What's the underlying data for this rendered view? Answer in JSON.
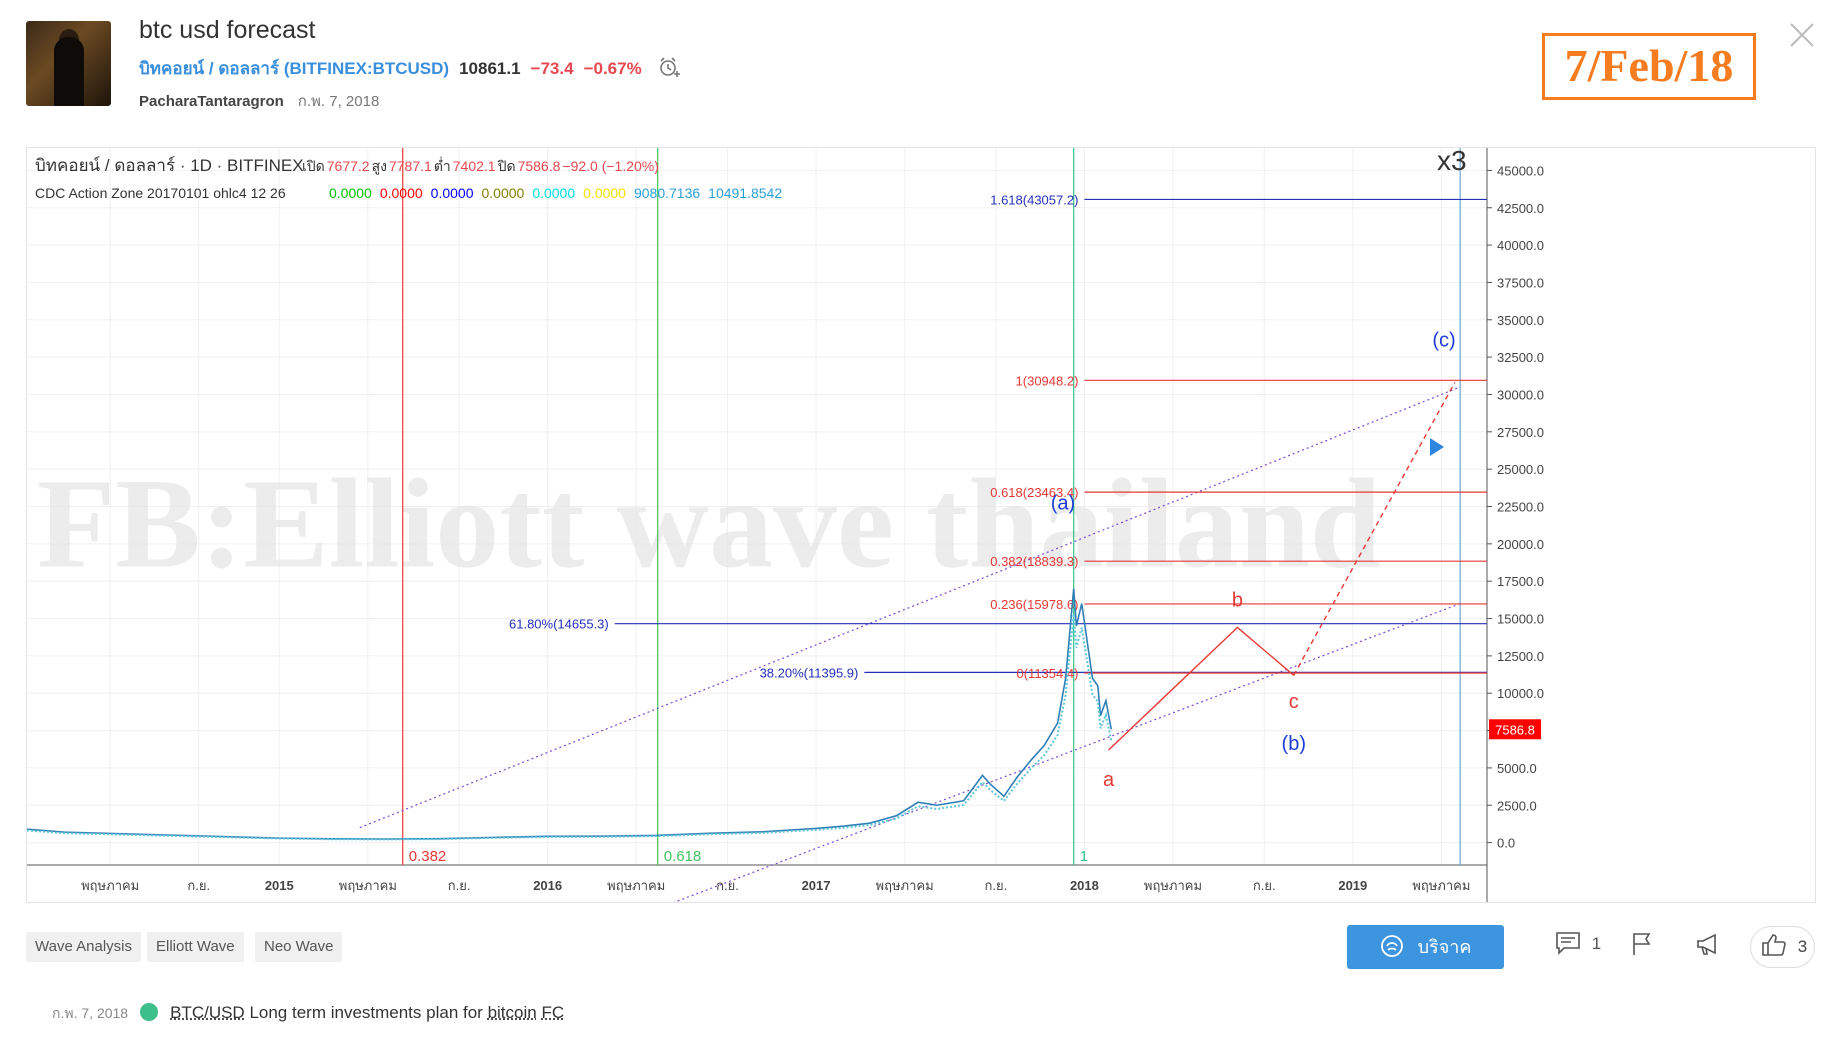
{
  "header": {
    "title": "btc usd forecast",
    "symbol_name": "บิทคอยน์ / ดอลลาร์",
    "symbol_code": "(BITFINEX:BTCUSD)",
    "price": "10861.1",
    "change": "−73.4",
    "change_pct": "−0.67%",
    "author": "PacharaTantaragron",
    "date": "ก.พ. 7, 2018",
    "stamp": "7/Feb/18"
  },
  "chart_data": {
    "type": "line",
    "title": "บิทคอยน์ / ดอลลาร์ · 1D · BITFINEX",
    "ohlc": {
      "open_label": "เปิด",
      "open": "7677.2",
      "high_label": "สูง",
      "high": "7787.1",
      "low_label": "ต่ำ",
      "low": "7402.1",
      "close_label": "ปิด",
      "close": "7586.8",
      "change": "−92.0 (−1.20%)"
    },
    "indicator": {
      "name": "CDC Action Zone 20170101 ohlc4 12 26",
      "values": [
        {
          "text": "0.0000",
          "color": "#00c000"
        },
        {
          "text": "0.0000",
          "color": "#ff0000"
        },
        {
          "text": "0.0000",
          "color": "#0000ff"
        },
        {
          "text": "0.0000",
          "color": "#808000"
        },
        {
          "text": "0.0000",
          "color": "#00e0e0"
        },
        {
          "text": "0.0000",
          "color": "#f0e000"
        },
        {
          "text": "9080.7136",
          "color": "#2a9fd6"
        },
        {
          "text": "10491.8542",
          "color": "#2a9fd6"
        }
      ]
    },
    "multiplier": "x3",
    "watermark": "FB:Elliott wave thailand",
    "ylim": [
      -1500,
      46500
    ],
    "y_ticks": [
      "45000.0",
      "42500.0",
      "40000.0",
      "37500.0",
      "35000.0",
      "32500.0",
      "30000.0",
      "27500.0",
      "25000.0",
      "22500.0",
      "20000.0",
      "17500.0",
      "15000.0",
      "12500.0",
      "10000.0",
      "7500.0",
      "5000.0",
      "2500.0",
      "0.0"
    ],
    "y_tick_values": [
      45000,
      42500,
      40000,
      37500,
      35000,
      32500,
      30000,
      27500,
      25000,
      22500,
      20000,
      17500,
      15000,
      12500,
      10000,
      7500,
      5000,
      2500,
      0
    ],
    "xlim": [
      2014.06,
      2019.5
    ],
    "x_ticks": [
      {
        "label": "พฤษภาคม",
        "x": 2014.37
      },
      {
        "label": "ก.ย.",
        "x": 2014.7
      },
      {
        "label": "2015",
        "x": 2015.0,
        "bold": true
      },
      {
        "label": "พฤษภาคม",
        "x": 2015.33
      },
      {
        "label": "ก.ย.",
        "x": 2015.67
      },
      {
        "label": "2016",
        "x": 2016.0,
        "bold": true
      },
      {
        "label": "พฤษภาคม",
        "x": 2016.33
      },
      {
        "label": "ก.ย.",
        "x": 2016.67
      },
      {
        "label": "2017",
        "x": 2017.0,
        "bold": true
      },
      {
        "label": "พฤษภาคม",
        "x": 2017.33
      },
      {
        "label": "ก.ย.",
        "x": 2017.67
      },
      {
        "label": "2018",
        "x": 2018.0,
        "bold": true
      },
      {
        "label": "พฤษภาคม",
        "x": 2018.33
      },
      {
        "label": "ก.ย.",
        "x": 2018.67
      },
      {
        "label": "2019",
        "x": 2019.0,
        "bold": true
      },
      {
        "label": "พฤษภาคม",
        "x": 2019.33
      }
    ],
    "last_price": {
      "label": "7586.8",
      "value": 7586.8,
      "color": "#ff0000"
    },
    "price_series": {
      "x": [
        2014.06,
        2014.2,
        2014.4,
        2014.6,
        2014.8,
        2015.0,
        2015.2,
        2015.4,
        2015.6,
        2015.8,
        2016.0,
        2016.2,
        2016.4,
        2016.6,
        2016.8,
        2017.0,
        2017.1,
        2017.2,
        2017.3,
        2017.38,
        2017.45,
        2017.55,
        2017.62,
        2017.65,
        2017.7,
        2017.75,
        2017.8,
        2017.85,
        2017.9,
        2017.93,
        2017.96,
        2017.97,
        2017.99,
        2018.01,
        2018.03,
        2018.05,
        2018.06,
        2018.08,
        2018.1
      ],
      "y": [
        900,
        700,
        600,
        500,
        400,
        300,
        250,
        240,
        260,
        350,
        420,
        430,
        480,
        620,
        720,
        950,
        1100,
        1300,
        1800,
        2700,
        2500,
        2800,
        4500,
        3900,
        3100,
        4400,
        5500,
        6500,
        8000,
        11000,
        17000,
        14500,
        16000,
        13500,
        11000,
        10500,
        8500,
        9500,
        7586.8
      ]
    },
    "fib_lines_red": [
      {
        "label": "1(30948.2)",
        "value": 30948.2,
        "x_start": 2018.0
      },
      {
        "label": "0.618(23463.4)",
        "value": 23463.4,
        "x_start": 2018.0
      },
      {
        "label": "0.382(18839.3)",
        "value": 18839.3,
        "x_start": 2018.0
      },
      {
        "label": "0.236(15978.6)",
        "value": 15978.6,
        "x_start": 2018.0
      },
      {
        "label": "0(11354.4)",
        "value": 11354.4,
        "x_start": 2018.0
      }
    ],
    "fib_lines_blue": [
      {
        "label": "1.618(43057.2)",
        "value": 43057.2,
        "x_start": 2018.0
      },
      {
        "label": "61.80%(14655.3)",
        "value": 14655.3,
        "x_start": 2016.25
      },
      {
        "label": "38.20%(11395.9)",
        "value": 11395.9,
        "x_start": 2017.18
      }
    ],
    "vlines": [
      {
        "label": "0.382",
        "x": 2015.46,
        "color": "#e53935"
      },
      {
        "label": "0.618",
        "x": 2016.41,
        "color": "#43c35a"
      },
      {
        "label": "1",
        "x": 2017.96,
        "color": "#2fc38a"
      },
      {
        "label": "",
        "x": 2019.4,
        "color": "#6aa8d6"
      }
    ],
    "channel_lines": [
      {
        "x": [
          2015.3,
          2019.4
        ],
        "y": [
          1000,
          30500
        ]
      },
      {
        "x": [
          2015.3,
          2019.4
        ],
        "y": [
          -12000,
          16000
        ]
      }
    ],
    "wave_path": {
      "x": [
        2018.09,
        2018.57,
        2018.78
      ],
      "y": [
        6200,
        14400,
        11200
      ]
    },
    "wave_projection": {
      "x": [
        2018.78,
        2019.38
      ],
      "y": [
        11200,
        30800
      ]
    },
    "wave_labels": [
      {
        "text": "(a)",
        "x": 2017.92,
        "y": 22300,
        "color": "#1e3cd8"
      },
      {
        "text": "b",
        "x": 2018.57,
        "y": 15800,
        "color": "#e53935"
      },
      {
        "text": "a",
        "x": 2018.09,
        "y": 3800,
        "color": "#e53935"
      },
      {
        "text": "c",
        "x": 2018.78,
        "y": 9000,
        "color": "#e53935"
      },
      {
        "text": "(b)",
        "x": 2018.78,
        "y": 6200,
        "color": "#1e3cd8"
      },
      {
        "text": "(c)",
        "x": 2019.34,
        "y": 33200,
        "color": "#1e3cd8"
      }
    ]
  },
  "tags": [
    "Wave Analysis",
    "Elliott Wave",
    "Neo Wave"
  ],
  "actions": {
    "donate": "บริจาค",
    "comments": "1",
    "likes": "3"
  },
  "related": {
    "date": "ก.พ. 7, 2018",
    "pair": "BTC/USD",
    "text1": " Long term investments plan for ",
    "link": "bitcoin",
    "space": " ",
    "fc": "FC"
  }
}
